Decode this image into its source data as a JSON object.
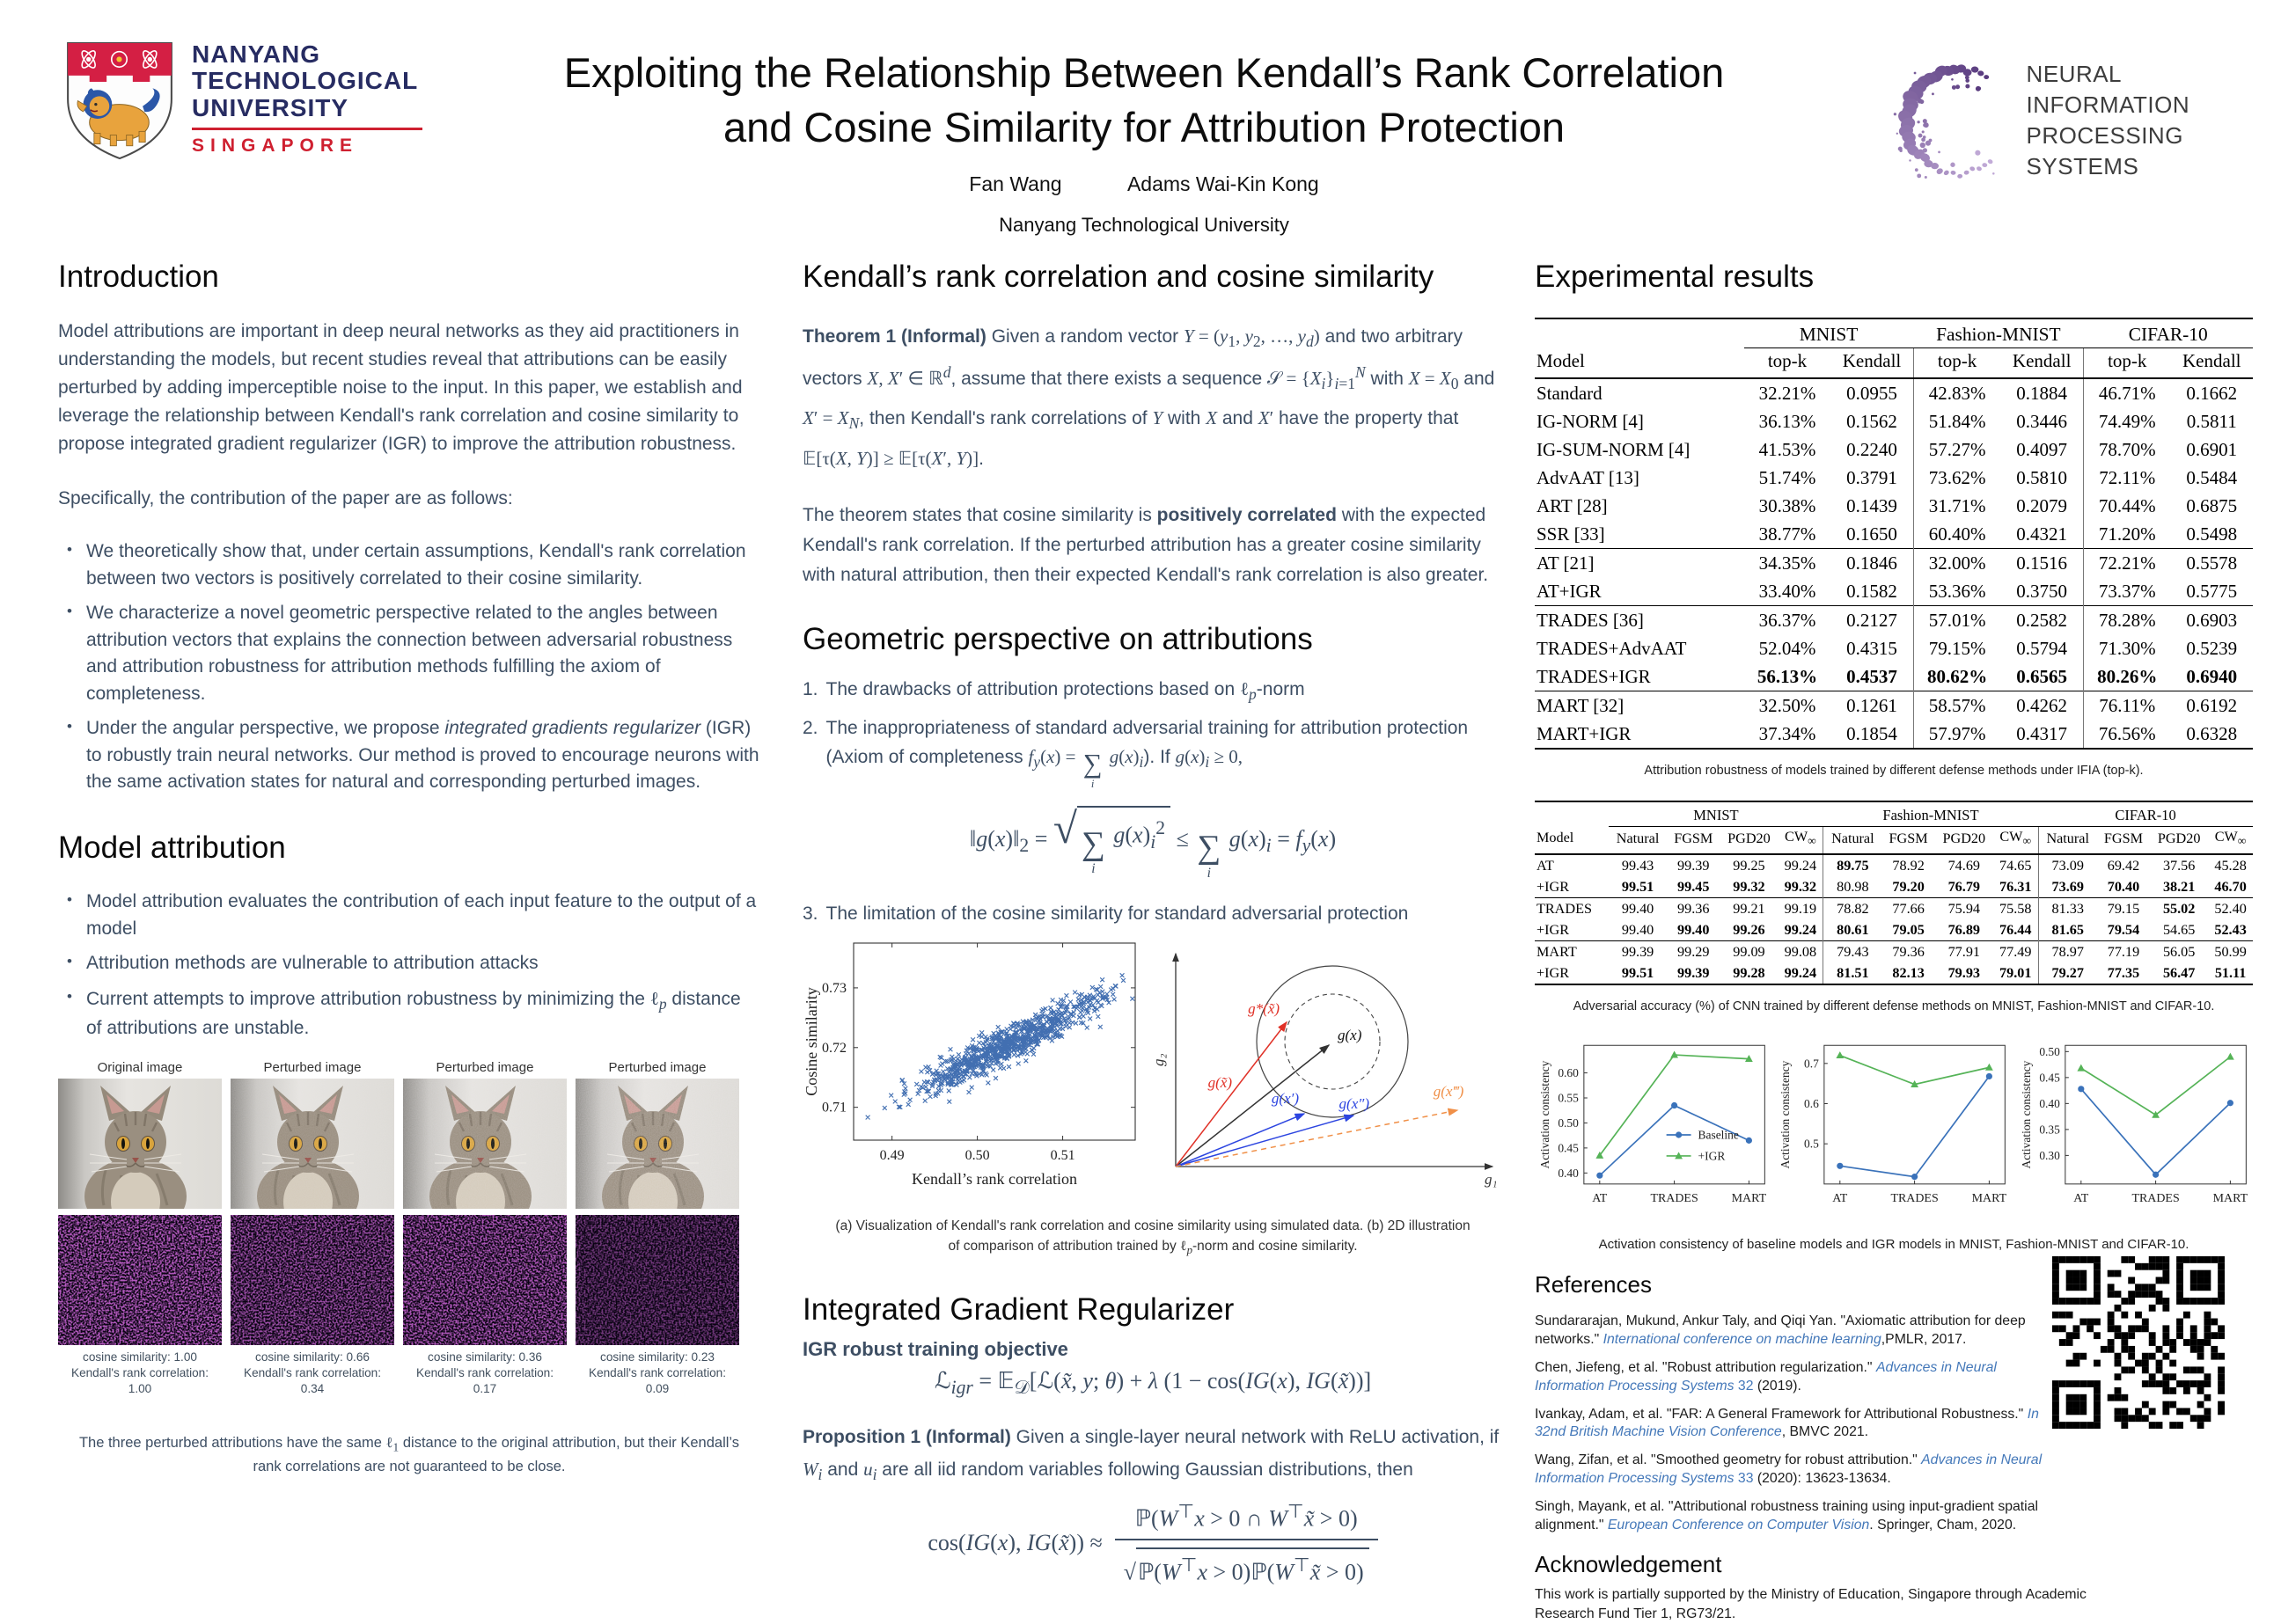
{
  "header": {
    "title_line1": "Exploiting the Relationship Between Kendall’s Rank Correlation",
    "title_line2": "and Cosine Similarity for Attribution Protection",
    "authors": [
      "Fan Wang",
      "Adams Wai-Kin Kong"
    ],
    "affiliation": "Nanyang Technological University",
    "ntu_logo": {
      "line1": "NANYANG",
      "line2": "TECHNOLOGICAL",
      "line3": "UNIVERSITY",
      "line4": "SINGAPORE"
    },
    "neurips_logo": {
      "line1": "NEURAL INFORMATION",
      "line2": "PROCESSING SYSTEMS"
    }
  },
  "colors": {
    "body_text": "#3d4e63",
    "heading": "#0b0b0b",
    "reference_link": "#4478b9",
    "scatter_marker": "#2e5fa8",
    "chart_blue": "#3a72ba",
    "chart_green": "#55b357",
    "vector_red": "#e03127",
    "vector_blue": "#2c45e0",
    "vector_orange": "#f09048",
    "ntu_navy": "#272c62",
    "ntu_red": "#cf2030",
    "neurips_purple_dark": "#583a7e",
    "neurips_purple_light": "#c2abd8"
  },
  "left": {
    "intro_heading": "Introduction",
    "intro_para": "Model attributions are important in deep neural networks as they aid practitioners in understanding the models, but recent studies reveal that attributions can be easily perturbed by adding imperceptible noise to the input. In this paper, we establish and leverage the relationship between Kendall's rank correlation and cosine similarity to propose integrated gradient regularizer (IGR) to improve the attribution robustness.",
    "contrib_lead": "Specifically, the contribution of the paper are as follows:",
    "intro_bullets": [
      "We theoretically show that, under certain assumptions, Kendall's rank correlation between two vectors is positively correlated to their cosine similarity.",
      "We characterize a novel geometric perspective related to the angles between attribution vectors that explains the connection between adversarial robustness and attribution robustness for attribution methods fulfilling the axiom of completeness.",
      "Under the angular perspective, we propose <i>integrated gradients regularizer</i> (IGR) to robustly train neural networks. Our method is proved to encourage neurons with the same activation states for natural and corresponding perturbed images."
    ],
    "model_heading": "Model attribution",
    "model_bullets": [
      "Model attribution evaluates the contribution of each input feature to the output of a model",
      "Attribution methods are vulnerable to attribution attacks",
      "Current attempts to improve attribution robustness by minimizing the <span class='m'>ℓ<sub><i>p</i></sub></span> distance of attributions are unstable."
    ],
    "figure": {
      "columns": [
        {
          "title": "Original image",
          "cos": "cosine similarity: 1.00",
          "kendall": "Kendall's rank correlation: 1.00"
        },
        {
          "title": "Perturbed image",
          "cos": "cosine similarity: 0.66",
          "kendall": "Kendall's rank correlation: 0.34"
        },
        {
          "title": "Perturbed image",
          "cos": "cosine similarity: 0.36",
          "kendall": "Kendall's rank correlation: 0.17"
        },
        {
          "title": "Perturbed image",
          "cos": "cosine similarity: 0.23",
          "kendall": "Kendall's rank correlation: 0.09"
        }
      ],
      "caption_html": "The three perturbed attributions have the same <span class='m'>ℓ<sub>1</sub></span> distance to the original attribution, but their Kendall’s rank correlations are not guaranteed to be close."
    }
  },
  "middle": {
    "kendall_heading": "Kendall’s rank correlation and cosine similarity",
    "theorem_html": "<b>Theorem 1 (Informal)</b> Given a random vector <span class='m'><i>Y</i> = (<i>y</i><sub>1</sub>, <i>y</i><sub>2</sub>, …, <i>y</i><sub><i>d</i></sub>)</span> and two arbitrary vectors <span class='m'><i>X</i>, <i>X</i>′ ∈ ℝ<sup><i>d</i></sup></span>, assume that there exists a sequence <span class='m'>𝒮 = {<i>X</i><sub><i>i</i></sub>}<sub><i>i</i>=1</sub><sup><i>N</i></sup></span> with <span class='m'><i>X</i> = <i>X</i><sub>0</sub></span> and <span class='m'><i>X</i>′ = <i>X</i><sub><i>N</i></sub></span>, then Kendall's rank correlations of <span class='m'><i>Y</i></span> with <span class='m'><i>X</i></span> and <span class='m'><i>X</i>′</span> have the property that <span class='m'>𝔼[τ(<i>X</i>, <i>Y</i>)] ≥ 𝔼[τ(<i>X</i>′, <i>Y</i>)]</span>.",
    "theorem_expl_html": "The theorem states that cosine similarity is <b>positively correlated</b> with the expected Kendall's rank correlation. If the perturbed attribution has a greater cosine similarity with natural attribution, then their expected Kendall's rank correlation is also greater.",
    "geo_heading": "Geometric perspective on attributions",
    "geo_item1_html": "The drawbacks of attribution protections based on <span class='m'>ℓ<sub><i>p</i></sub></span>-norm",
    "geo_item2_html": "The inappropriateness of standard adversarial training for attribution protection (Axiom of completeness <span class='m'><i>f</i><sub><i>y</i></sub>(<i>x</i>) = <span class='sum'><span class='sig'>∑</span><span class='idx'><i>i</i></span></span> <i>g</i>(<i>x</i>)<sub><i>i</i></sub></span>). If <span class='m'><i>g</i>(<i>x</i>)<sub><i>i</i></sub> ≥ 0,</span>",
    "l2_formula_html": "‖<i>g</i>(<i>x</i>)‖<sub>2</sub> = <span class='sqrtgrp'><span class='rad'>√</span><span class='sqrtbar'><span class='sum'><span class='sig'>∑</span><span class='idx'><i>i</i></span></span> <i>g</i>(<i>x</i>)<sub><i>i</i></sub><sup>2</sup></span></span> ≤ <span class='sum'><span class='sig'>∑</span><span class='idx'><i>i</i></span></span> <i>g</i>(<i>x</i>)<sub><i>i</i></sub> = <i>f</i><sub><i>y</i></sub>(<i>x</i>)",
    "geo_item3_html": "The limitation of the cosine similarity for standard adversarial protection",
    "fig_caption_html": "(a) Visualization of Kendall's rank correlation and cosine similarity using simulated data. (b) 2D illustration of comparison of attribution trained by <span class='m'>ℓ<sub><i>p</i></sub></span>-norm and cosine similarity.",
    "igr_heading": "Integrated Gradient Regularizer",
    "igr_sub": "IGR robust training objective",
    "igr_formula_html": "ℒ<sub><i>igr</i></sub> = 𝔼<sub>𝒟</sub>[ℒ(<i>x̃</i>, <i>y</i>; <i>θ</i>) + <i>λ</i> (1 − cos(<i>IG</i>(<i>x</i>), <i>IG</i>(<i>x̃</i>))]",
    "prop_html": "<b>Proposition 1 (Informal)</b> Given a single-layer neural network with ReLU activation, if <span class='m'><i>W</i><sub><i>i</i></sub></span> and <span class='m'><i>u</i><sub><i>i</i></sub></span> are all iid random variables following Gaussian distributions, then",
    "cos_lhs_html": "cos(<i>IG</i>(<i>x</i>), <i>IG</i>(<i>x̃</i>)) ≈",
    "cos_num_html": "ℙ(<i>W</i><sup>⊤</sup><i>x</i> &gt; 0 ∩ <i>W</i><sup>⊤</sup><i>x̃</i> &gt; 0)",
    "cos_den_html": "√<span class='sqrtbar'>ℙ(<i>W</i><sup>⊤</sup><i>x</i> &gt; 0)ℙ(<i>W</i><sup>⊤</sup><i>x̃</i> &gt; 0)</span>"
  },
  "right": {
    "heading": "Experimental results",
    "table1": {
      "col0": "Model",
      "groups": [
        "MNIST",
        "Fashion-MNIST",
        "CIFAR-10"
      ],
      "subcols": [
        "top-k",
        "Kendall"
      ],
      "vsep_cols": [
        3,
        5
      ],
      "sections": [
        [
          [
            "Standard",
            "32.21%",
            "0.0955",
            "42.83%",
            "0.1884",
            "46.71%",
            "0.1662"
          ],
          [
            "IG-NORM [4]",
            "36.13%",
            "0.1562",
            "51.84%",
            "0.3446",
            "74.49%",
            "0.5811"
          ],
          [
            "IG-SUM-NORM [4]",
            "41.53%",
            "0.2240",
            "57.27%",
            "0.4097",
            "78.70%",
            "0.6901"
          ],
          [
            "AdvAAT [13]",
            "51.74%",
            "0.3791",
            "73.62%",
            "0.5810",
            "72.11%",
            "0.5484"
          ],
          [
            "ART [28]",
            "30.38%",
            "0.1439",
            "31.71%",
            "0.2079",
            "70.44%",
            "0.6875"
          ],
          [
            "SSR [33]",
            "38.77%",
            "0.1650",
            "60.40%",
            "0.4321",
            "71.20%",
            "0.5498"
          ]
        ],
        [
          [
            "AT [21]",
            "34.35%",
            "0.1846",
            "32.00%",
            "0.1516",
            "72.21%",
            "0.5578"
          ],
          [
            "AT+IGR",
            "33.40%",
            "0.1582",
            "53.36%",
            "0.3750",
            "73.37%",
            "0.5775"
          ]
        ],
        [
          [
            "TRADES [36]",
            "36.37%",
            "0.2127",
            "57.01%",
            "0.2582",
            "78.28%",
            "0.6903"
          ],
          [
            "TRADES+AdvAAT",
            "52.04%",
            "0.4315",
            "79.15%",
            "0.5794",
            "71.30%",
            "0.5239"
          ],
          [
            "TRADES+IGR",
            "*56.13%",
            "*0.4537",
            "*80.62%",
            "*0.6565",
            "*80.26%",
            "*0.6940"
          ]
        ],
        [
          [
            "MART [32]",
            "32.50%",
            "0.1261",
            "58.57%",
            "0.4262",
            "76.11%",
            "0.6192"
          ],
          [
            "MART+IGR",
            "37.34%",
            "0.1854",
            "57.97%",
            "0.4317",
            "76.56%",
            "0.6328"
          ]
        ]
      ],
      "caption": "Attribution robustness of models trained by different defense methods under IFIA (top-k)."
    },
    "table2": {
      "col0": "Model",
      "groups": [
        "MNIST",
        "Fashion-MNIST",
        "CIFAR-10"
      ],
      "subcols": [
        "Natural",
        "FGSM",
        "PGD20",
        "CW∞"
      ],
      "vsep_cols": [
        5,
        9
      ],
      "sections": [
        [
          [
            "AT",
            "99.43",
            "99.39",
            "99.25",
            "99.24",
            "*89.75",
            "78.92",
            "74.69",
            "74.65",
            "73.09",
            "69.42",
            "37.56",
            "45.28"
          ],
          [
            "+IGR",
            "*99.51",
            "*99.45",
            "*99.32",
            "*99.32",
            "80.98",
            "*79.20",
            "*76.79",
            "*76.31",
            "*73.69",
            "*70.40",
            "*38.21",
            "*46.70"
          ]
        ],
        [
          [
            "TRADES",
            "99.40",
            "99.36",
            "99.21",
            "99.19",
            "78.82",
            "77.66",
            "75.94",
            "75.58",
            "81.33",
            "79.15",
            "*55.02",
            "52.40"
          ],
          [
            "+IGR",
            "99.40",
            "*99.40",
            "*99.26",
            "*99.24",
            "*80.61",
            "*79.05",
            "*76.89",
            "*76.44",
            "*81.65",
            "*79.54",
            "54.65",
            "*52.43"
          ]
        ],
        [
          [
            "MART",
            "99.39",
            "99.29",
            "99.09",
            "99.08",
            "79.43",
            "79.36",
            "77.91",
            "77.49",
            "78.97",
            "77.19",
            "56.05",
            "50.99"
          ],
          [
            "+IGR",
            "*99.51",
            "*99.39",
            "*99.28",
            "*99.24",
            "*81.51",
            "*82.13",
            "*79.93",
            "*79.01",
            "*79.27",
            "*77.35",
            "*56.47",
            "*51.11"
          ]
        ]
      ],
      "caption": "Adversarial accuracy (%) of CNN trained by different defense methods on MNIST, Fashion-MNIST and CIFAR-10."
    },
    "charts_caption": "Activation consistency of baseline models and IGR models in MNIST, Fashion-MNIST and CIFAR-10.",
    "references_heading": "References",
    "references": [
      "Sundararajan, Mukund, Ankur Taly, and Qiqi Yan. \"Axiomatic attribution for deep networks.\" <i>International conference on machine learning</i>,PMLR, 2017.",
      "Chen, Jiefeng, et al. \"Robust attribution regularization.\" <i>Advances in Neural Information Processing Systems</i> <span class='blue'>32</span> (2019).",
      "Ivankay, Adam, et al. \"FAR: A General Framework for Attributional Robustness.\" <i>In 32nd British Machine Vision Conference</i>, BMVC 2021.",
      "Wang, Zifan, et al. \"Smoothed geometry for robust attribution.\" <i>Advances in Neural Information Processing Systems</i> <span class='blue'>33</span> (2020): 13623-13634.",
      "Singh, Mayank, et al. \"Attributional robustness training using input-gradient spatial alignment.\" <i>European Conference on Computer Vision</i>. Springer, Cham, 2020."
    ],
    "ack_heading": "Acknowledgement",
    "ack_text": "This work is partially supported by the Ministry of Education, Singapore through Academic Research Fund Tier 1, RG73/21."
  },
  "chart_data": [
    {
      "id": "kendall-cosine-scatter",
      "type": "scatter",
      "xlabel": "Kendall’s rank correlation",
      "ylabel": "Cosine similarity",
      "xticks": [
        "0.49",
        "0.50",
        "0.51"
      ],
      "yticks": [
        "0.71",
        "0.72",
        "0.73"
      ],
      "xlim": [
        0.4855,
        0.5185
      ],
      "ylim": [
        0.7045,
        0.7375
      ],
      "n_points": 850,
      "x_mean": 0.5035,
      "y_mean": 0.7205,
      "x_sd": 0.0056,
      "y_sd": 0.0042,
      "rho": 0.93,
      "marker": "x",
      "color": "#2e5fa8"
    },
    {
      "id": "vector-diagram",
      "type": "diagram",
      "axis_labels": {
        "x": "g₁",
        "y": "g₂"
      },
      "labels": {
        "gx": "g(x)",
        "gsx": "g*(x̃)",
        "gxt": "g(x̃)",
        "gx1": "g(x′)",
        "gx2": "g(x″)",
        "gx3": "g(x‴)"
      }
    },
    {
      "id": "activation-mnist",
      "type": "line",
      "categories": [
        "AT",
        "TRADES",
        "MART"
      ],
      "ylabel": "Activation consistency",
      "yticks": [
        "0.40",
        "0.45",
        "0.50",
        "0.55",
        "0.60"
      ],
      "ylim": [
        0.378,
        0.655
      ],
      "series": [
        {
          "name": "Baseline",
          "color": "#3a72ba",
          "marker": "circle",
          "values": [
            0.395,
            0.535,
            0.465
          ]
        },
        {
          "name": "+IGR",
          "color": "#55b357",
          "marker": "triangle",
          "values": [
            0.435,
            0.636,
            0.628
          ]
        }
      ],
      "legend": true
    },
    {
      "id": "activation-fashion-mnist",
      "type": "line",
      "categories": [
        "AT",
        "TRADES",
        "MART"
      ],
      "ylabel": "Activation consistency",
      "yticks": [
        "0.5",
        "0.6",
        "0.7"
      ],
      "ylim": [
        0.4,
        0.745
      ],
      "series": [
        {
          "name": "Baseline",
          "color": "#3a72ba",
          "marker": "circle",
          "values": [
            0.445,
            0.418,
            0.668
          ]
        },
        {
          "name": "+IGR",
          "color": "#55b357",
          "marker": "triangle",
          "values": [
            0.72,
            0.648,
            0.69
          ]
        }
      ],
      "legend": false
    },
    {
      "id": "activation-cifar10",
      "type": "line",
      "categories": [
        "AT",
        "TRADES",
        "MART"
      ],
      "ylabel": "Activation consistency",
      "yticks": [
        "0.30",
        "0.35",
        "0.40",
        "0.45",
        "0.50"
      ],
      "ylim": [
        0.245,
        0.512
      ],
      "series": [
        {
          "name": "Baseline",
          "color": "#3a72ba",
          "marker": "circle",
          "values": [
            0.428,
            0.263,
            0.401
          ]
        },
        {
          "name": "+IGR",
          "color": "#55b357",
          "marker": "triangle",
          "values": [
            0.468,
            0.378,
            0.49
          ]
        }
      ],
      "legend": false
    }
  ]
}
